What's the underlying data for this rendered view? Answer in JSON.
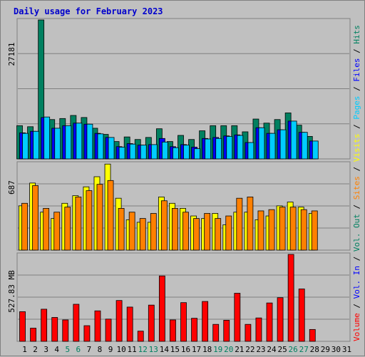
{
  "title": "Daily usage for February 2023",
  "chart_data": [
    {
      "type": "bar",
      "panel": "hits-files-pages",
      "max_label": "27181",
      "ylim": [
        0,
        27181
      ],
      "x": [
        "1",
        "2",
        "3",
        "4",
        "5",
        "6",
        "7",
        "8",
        "9",
        "10",
        "11",
        "12",
        "13",
        "14",
        "15",
        "16",
        "17",
        "18",
        "19",
        "20",
        "21",
        "22",
        "23",
        "24",
        "25",
        "26",
        "27",
        "28",
        "29",
        "30",
        "31"
      ],
      "series": [
        {
          "name": "Hits",
          "color": "#008060",
          "values": [
            6500,
            6300,
            27181,
            7700,
            7900,
            8500,
            8100,
            6000,
            4800,
            3400,
            4300,
            3800,
            4200,
            5900,
            3400,
            4600,
            3800,
            5500,
            6500,
            6500,
            6500,
            5300,
            7800,
            7000,
            7700,
            9000,
            6600,
            4400,
            0,
            0,
            0
          ]
        },
        {
          "name": "Files",
          "color": "#0000ff",
          "values": [
            5100,
            5400,
            8100,
            6000,
            6500,
            7000,
            6800,
            5000,
            4200,
            2400,
            3000,
            2700,
            2800,
            4000,
            2400,
            2800,
            2300,
            4000,
            4200,
            4500,
            4700,
            3200,
            6100,
            5000,
            5700,
            7400,
            5200,
            3500,
            0,
            0,
            0
          ]
        },
        {
          "name": "Pages",
          "color": "#00ccff",
          "values": [
            5000,
            5400,
            8200,
            6000,
            6500,
            7000,
            6800,
            4900,
            4200,
            2300,
            2900,
            2700,
            2800,
            3300,
            2200,
            2700,
            2000,
            3900,
            4000,
            4400,
            4600,
            3200,
            6100,
            5000,
            5700,
            7400,
            5200,
            3500,
            0,
            0,
            0
          ]
        }
      ]
    },
    {
      "type": "bar",
      "panel": "visits-sites",
      "max_label": "687",
      "ylim": [
        0,
        687
      ],
      "x": [
        "1",
        "2",
        "3",
        "4",
        "5",
        "6",
        "7",
        "8",
        "9",
        "10",
        "11",
        "12",
        "13",
        "14",
        "15",
        "16",
        "17",
        "18",
        "19",
        "20",
        "21",
        "22",
        "23",
        "24",
        "25",
        "26",
        "27",
        "28",
        "29",
        "30",
        "31"
      ],
      "series": [
        {
          "name": "Visits",
          "color": "#ffff00",
          "values": [
            350,
            530,
            300,
            250,
            370,
            430,
            500,
            580,
            680,
            410,
            240,
            220,
            220,
            420,
            370,
            330,
            270,
            250,
            290,
            200,
            300,
            300,
            240,
            270,
            350,
            380,
            340,
            290,
            0,
            0,
            0
          ]
        },
        {
          "name": "Sites",
          "color": "#ff8000",
          "values": [
            370,
            510,
            330,
            300,
            340,
            420,
            470,
            520,
            550,
            330,
            300,
            250,
            290,
            390,
            330,
            300,
            250,
            290,
            250,
            270,
            410,
            420,
            310,
            320,
            340,
            340,
            320,
            310,
            0,
            0,
            0
          ]
        }
      ]
    },
    {
      "type": "bar",
      "panel": "volume",
      "max_label": "527.83 MB",
      "ylim": [
        0,
        527.83
      ],
      "x": [
        "1",
        "2",
        "3",
        "4",
        "5",
        "6",
        "7",
        "8",
        "9",
        "10",
        "11",
        "12",
        "13",
        "14",
        "15",
        "16",
        "17",
        "18",
        "19",
        "20",
        "21",
        "22",
        "23",
        "24",
        "25",
        "26",
        "27",
        "28",
        "29",
        "30",
        "31"
      ],
      "series": [
        {
          "name": "Volume",
          "color": "#ff0000",
          "values": [
            180,
            80,
            195,
            145,
            130,
            225,
            95,
            185,
            135,
            248,
            208,
            62,
            220,
            397,
            130,
            235,
            140,
            242,
            103,
            128,
            292,
            103,
            142,
            233,
            265,
            527.83,
            318,
            72,
            0,
            0,
            0
          ]
        }
      ]
    }
  ],
  "legend": [
    {
      "text": "Volume",
      "color": "#ff0000"
    },
    {
      "text": " / ",
      "color": "#000000"
    },
    {
      "text": "Vol. In",
      "color": "#0000ff"
    },
    {
      "text": " / ",
      "color": "#000000"
    },
    {
      "text": "Vol. Out",
      "color": "#008060"
    },
    {
      "text": " / ",
      "color": "#000000"
    },
    {
      "text": "Sites",
      "color": "#ff8000"
    },
    {
      "text": " / ",
      "color": "#000000"
    },
    {
      "text": "Visits",
      "color": "#ffff00"
    },
    {
      "text": " / ",
      "color": "#000000"
    },
    {
      "text": "Pages",
      "color": "#00ccff"
    },
    {
      "text": " / ",
      "color": "#000000"
    },
    {
      "text": "Files",
      "color": "#0000ff"
    },
    {
      "text": " / ",
      "color": "#000000"
    },
    {
      "text": "Hits",
      "color": "#008060"
    }
  ],
  "weekend_days": [
    4,
    5,
    11,
    12,
    18,
    19,
    25,
    26
  ],
  "colors": {
    "background": "#c0c0c0",
    "weekday_label": "#000000",
    "weekend_label": "#008060"
  }
}
